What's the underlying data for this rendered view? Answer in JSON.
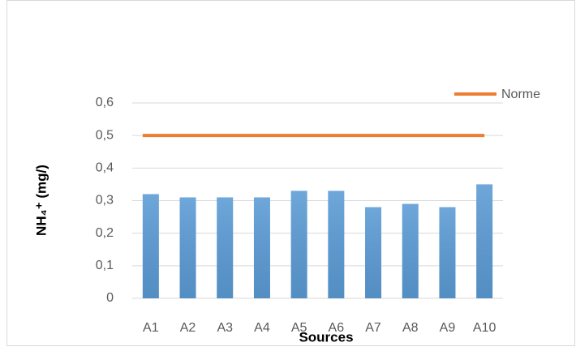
{
  "chart_data": {
    "type": "bar",
    "categories": [
      "A1",
      "A2",
      "A3",
      "A4",
      "A5",
      "A6",
      "A7",
      "A8",
      "A9",
      "A10"
    ],
    "values": [
      0.32,
      0.31,
      0.31,
      0.31,
      0.33,
      0.33,
      0.28,
      0.29,
      0.28,
      0.35
    ],
    "color": "#5b9bd5",
    "reference_line": {
      "name": "Norme",
      "value": 0.5,
      "color": "#ed7d31"
    },
    "x_label": "Sources",
    "y_label": "NH₄⁺ (mg/)",
    "ylim": [
      0,
      0.6
    ],
    "yticks": [
      0,
      {
        "value": 0.1,
        "label": "0,1"
      },
      {
        "value": 0.2,
        "label": "0,2"
      },
      {
        "value": 0.3,
        "label": "0,3"
      },
      {
        "value": 0.4,
        "label": "0,4"
      },
      {
        "value": 0.5,
        "label": "0,5"
      },
      {
        "value": 0.6,
        "label": "0,6"
      }
    ],
    "grid": true,
    "legend": "top-right"
  }
}
